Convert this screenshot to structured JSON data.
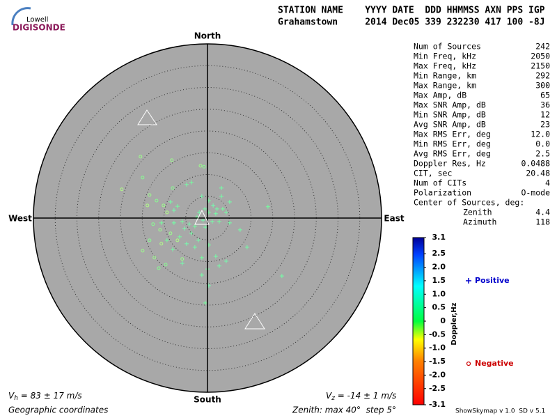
{
  "header": {
    "logo_top": "Lowell",
    "logo_bottom": "DIGISONDE",
    "columns": "STATION NAME    YYYY DATE  DDD HHMMSS AXN PPS IGP",
    "values": "Grahamstown     2014 Dec05 339 232230 417 100 -8J"
  },
  "stats": {
    "rows": [
      [
        "Num of Sources",
        "242"
      ],
      [
        "Min Freq, kHz",
        "2050"
      ],
      [
        "Max Freq, kHz",
        "2150"
      ],
      [
        "Min Range, km",
        "292"
      ],
      [
        "Max Range, km",
        "300"
      ],
      [
        "Max Amp, dB",
        "65"
      ],
      [
        "Max SNR Amp, dB",
        "36"
      ],
      [
        "Min SNR Amp, dB",
        "12"
      ],
      [
        "Avg SNR Amp, dB",
        "23"
      ],
      [
        "Max RMS Err, deg",
        "12.0"
      ],
      [
        "Min RMS Err, deg",
        "0.0"
      ],
      [
        "Avg RMS Err, deg",
        "2.5"
      ],
      [
        "Doppler Res, Hz",
        "0.0488"
      ],
      [
        "CIT, sec",
        "20.48"
      ],
      [
        "Num of CITs",
        "4"
      ],
      [
        "Polarization",
        "O-mode"
      ]
    ],
    "center_title": "Center of Sources, deg:",
    "center_rows": [
      [
        "Zenith",
        "4.4"
      ],
      [
        "Azimuth",
        "118"
      ]
    ]
  },
  "chart_data": {
    "type": "skymap",
    "directions": {
      "north": "North",
      "south": "South",
      "east": "East",
      "west": "West"
    },
    "rlim": [
      0,
      40
    ],
    "rings": [
      5,
      10,
      15,
      20,
      25,
      30,
      35
    ],
    "series": [
      {
        "name": "Positive",
        "marker": "+",
        "legend_color": "#0000cc",
        "x": [
          3.2,
          0.3,
          1.3,
          2.2,
          3.5,
          -0.6,
          -1.9,
          0.3,
          1.9,
          4.3,
          -2.4,
          -1.0,
          1.1,
          2.7,
          5.1,
          -4.2,
          -2.9,
          -0.5,
          7.5,
          -5.8,
          -5.3,
          -3.7,
          -6.4,
          -2.1,
          -4.8,
          0.3,
          9.1,
          1.9,
          -1.3,
          4.3,
          2.7,
          0.0,
          -1.3,
          -7.7,
          -6.9,
          -8.5,
          -4.8,
          -3.7,
          -1.3,
          5.1,
          13.9,
          3.2,
          0.3,
          -0.5,
          -2.9,
          -7.7,
          -9.3,
          -5.8,
          -8.0,
          -10.6,
          17.1
        ],
        "y": [
          5.0,
          4.0,
          2.9,
          2.1,
          2.1,
          2.1,
          1.3,
          1.3,
          1.0,
          1.3,
          0.2,
          -0.5,
          -0.8,
          -0.8,
          -1.1,
          -1.4,
          -1.9,
          -2.1,
          -2.7,
          -0.8,
          -2.4,
          -3.5,
          -4.3,
          -5.1,
          -5.9,
          -6.2,
          -6.7,
          -8.8,
          -9.1,
          -9.9,
          -11.0,
          -11.7,
          -13.1,
          1.8,
          2.7,
          3.7,
          7.7,
          8.2,
          5.0,
          3.7,
          2.6,
          6.9,
          -15.5,
          -19.5,
          -6.7,
          -1.1,
          -5.1,
          -10.4,
          -7.2,
          -1.1,
          -13.3
        ],
        "doppler": [
          0.2,
          0.1,
          0.3,
          0.2,
          0.1,
          0.2,
          0.3,
          0.1,
          0.2,
          0.2,
          0.1,
          0.3,
          0.2,
          0.1,
          0.2,
          0.3,
          0.1,
          0.2,
          0.2,
          0.1,
          0.3,
          0.2,
          0.1,
          0.2,
          0.3,
          0.1,
          0.2,
          0.2,
          0.1,
          0.3,
          0.2,
          0.1,
          0.2,
          0.3,
          0.1,
          0.2,
          0.2,
          0.1,
          0.3,
          0.2,
          0.1,
          0.2,
          0.3,
          0.1,
          0.2,
          0.2,
          0.1,
          0.3,
          0.2,
          0.1,
          0.2
        ]
      },
      {
        "name": "Negative",
        "marker": "o",
        "legend_color": "#cc0000",
        "x": [
          -15.4,
          -14.9,
          -19.7,
          -13.3,
          -11.7,
          -10.1,
          -9.3,
          -12.5,
          -10.9,
          -8.5,
          -13.3,
          -10.6,
          -12.2,
          -11.2,
          -14.9,
          -13.8,
          -8.0,
          -8.2,
          -1.6,
          -0.8,
          -6.9,
          -5.8,
          -9.6
        ],
        "y": [
          14.1,
          9.3,
          6.6,
          5.3,
          4.0,
          2.9,
          1.3,
          -1.4,
          -2.7,
          -3.5,
          -5.1,
          -5.9,
          -9.1,
          -11.5,
          -7.5,
          2.9,
          6.9,
          13.3,
          12.0,
          11.8,
          -5.1,
          -9.4,
          -10.7
        ],
        "doppler": [
          -0.2,
          -0.1,
          -0.3,
          -0.2,
          -0.1,
          -0.2,
          -0.3,
          -0.1,
          -0.2,
          -0.2,
          -0.1,
          -0.3,
          -0.2,
          -0.1,
          -0.2,
          -0.3,
          -0.1,
          -0.2,
          -0.2,
          -0.1,
          -0.3,
          -0.2,
          -0.1
        ]
      }
    ],
    "colorbar": {
      "label": "Doppler,Hz",
      "ylim": [
        -3.1,
        3.1
      ],
      "yticks": [
        3.1,
        2.5,
        {
          "value": 2,
          "label": "2.0"
        },
        1.5,
        {
          "value": 1,
          "label": "1.0"
        },
        0.5,
        0,
        -0.5,
        {
          "value": -1,
          "label": "-1.0"
        },
        -1.5,
        {
          "value": -2,
          "label": "-2.0"
        },
        -2.5,
        -3.1
      ]
    }
  },
  "footer": {
    "vh": {
      "symbol": "V",
      "sub": "h",
      "text": " = 83 ± 17 m/s"
    },
    "vz": {
      "symbol": "V",
      "sub": "z",
      "text": " = -14 ± 1 m/s"
    },
    "coords": "Geographic coordinates",
    "zenith": "Zenith: max 40°  step 5°",
    "version": "ShowSkymap v 1.0  SD v 5.1"
  }
}
